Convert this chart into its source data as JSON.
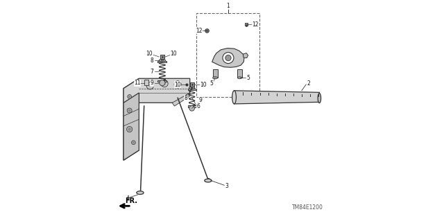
{
  "background_color": "#ffffff",
  "watermark": "TM84E1200",
  "fr_label": "FR.",
  "gray": "#333333",
  "light_gray": "#d0d0d0",
  "mid_gray": "#aaaaaa"
}
